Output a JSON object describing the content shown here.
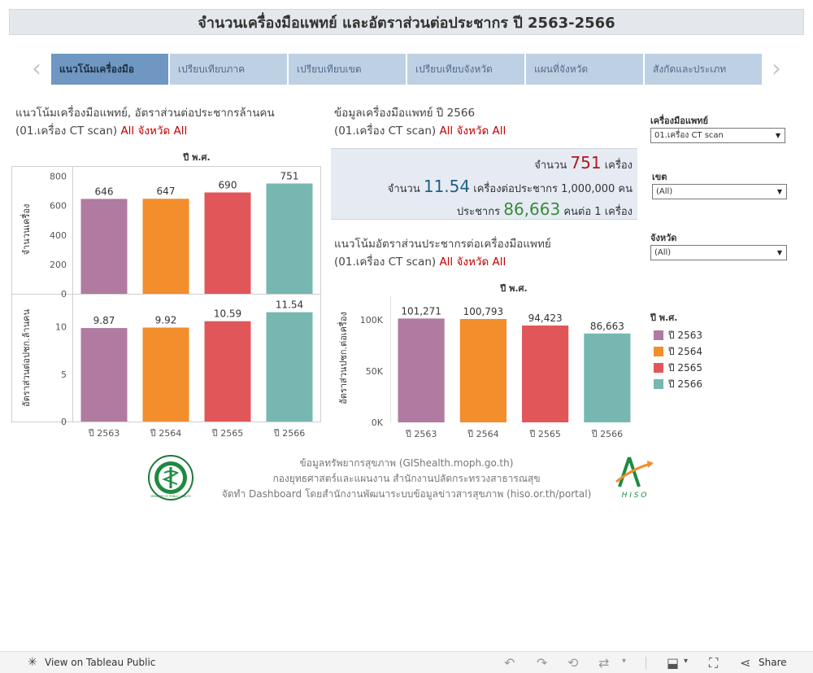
{
  "header": {
    "title": "จำนวนเครื่องมือแพทย์ และอัตราส่วนต่อประชากร ปี 2563-2566"
  },
  "nav": {
    "prev_icon": "chevron-left-icon",
    "next_icon": "chevron-right-icon",
    "tabs": [
      {
        "label": "แนวโน้มเครื่องมือ",
        "active": true
      },
      {
        "label": "เปรียบเทียบภาค",
        "active": false
      },
      {
        "label": "เปรียบเทียบเขต",
        "active": false
      },
      {
        "label": "เปรียบเทียบจังหวัด",
        "active": false
      },
      {
        "label": "แผนที่จังหวัด",
        "active": false
      },
      {
        "label": "สังกัดและประเภท",
        "active": false
      }
    ]
  },
  "left_panel": {
    "title_line1": "แนวโน้มเครื่องมือแพทย์, อัตราส่วนต่อประชากรล้านคน",
    "title_line2": "(01.เครื่อง CT scan)",
    "title_filter": "All จังหวัด All"
  },
  "right_panel": {
    "info_title_line1": "ข้อมูลเครื่องมือแพทย์ ปี 2566",
    "info_title_line2": "(01.เครื่อง CT scan)",
    "info_title_filter": "All จังหวัด All",
    "summary": {
      "count_prefix": "จำนวน",
      "count_value": "751",
      "count_suffix": "เครื่อง",
      "ratio_prefix": "จำนวน",
      "ratio_value": "11.54",
      "ratio_suffix": "เครื่องต่อประชากร 1,000,000 คน",
      "pop_prefix": "ประชากร",
      "pop_value": "86,663",
      "pop_suffix": "คนต่อ 1 เครื่อง",
      "colors": {
        "count": "#b0171f",
        "ratio": "#1f5f8b",
        "pop": "#3b8a3b"
      }
    },
    "trend_title_line1": "แนวโน้มอัตราส่วนประชากรต่อเครื่องมือแพทย์",
    "trend_title_line2": "(01.เครื่อง CT scan)",
    "trend_title_filter": "All จังหวัด All"
  },
  "filters": {
    "device": {
      "label": "เครื่องมือแพทย์",
      "value": "01.เครื่อง CT scan"
    },
    "region": {
      "label": "เขต",
      "value": "(All)"
    },
    "province": {
      "label": "จังหวัด",
      "value": "(All)"
    }
  },
  "legend": {
    "title": "ปี พ.ศ.",
    "items": [
      {
        "label": "ปี 2563",
        "color": "#b07aa1"
      },
      {
        "label": "ปี 2564",
        "color": "#f28e2b"
      },
      {
        "label": "ปี 2565",
        "color": "#e15759"
      },
      {
        "label": "ปี 2566",
        "color": "#76b7b2"
      }
    ]
  },
  "chart_data": [
    {
      "type": "bar",
      "title": "ปี พ.ศ.",
      "categories": [
        "ปี 2563",
        "ปี 2564",
        "ปี 2565",
        "ปี 2566"
      ],
      "values": [
        646,
        647,
        690,
        751
      ],
      "labels": [
        "646",
        "647",
        "690",
        "751"
      ],
      "ylabel": "จำนวนเครื่อง",
      "ylim": [
        0,
        870
      ],
      "yticks": [
        0,
        200,
        400,
        600,
        800
      ],
      "colors": [
        "#b07aa1",
        "#f28e2b",
        "#e15759",
        "#76b7b2"
      ]
    },
    {
      "type": "bar",
      "categories": [
        "ปี 2563",
        "ปี 2564",
        "ปี 2565",
        "ปี 2566"
      ],
      "values": [
        9.87,
        9.92,
        10.59,
        11.54
      ],
      "labels": [
        "9.87",
        "9.92",
        "10.59",
        "11.54"
      ],
      "ylabel": "อัตราส่วนต่อปชก.ล้านคน",
      "ylim": [
        0,
        13.4
      ],
      "yticks": [
        0,
        5,
        10
      ],
      "colors": [
        "#b07aa1",
        "#f28e2b",
        "#e15759",
        "#76b7b2"
      ]
    },
    {
      "type": "bar",
      "title": "ปี พ.ศ.",
      "categories": [
        "ปี 2563",
        "ปี 2564",
        "ปี 2565",
        "ปี 2566"
      ],
      "values": [
        101271,
        100793,
        94423,
        86663
      ],
      "labels": [
        "101,271",
        "100,793",
        "94,423",
        "86,663"
      ],
      "ylabel": "อัตราส่วนปชก.ต่อเครื่อง",
      "ylim": [
        0,
        123000
      ],
      "yticks": [
        0,
        50000,
        100000
      ],
      "ytick_labels": [
        "0K",
        "50K",
        "100K"
      ],
      "colors": [
        "#b07aa1",
        "#f28e2b",
        "#e15759",
        "#76b7b2"
      ]
    }
  ],
  "footer": {
    "line1": "ข้อมูลทรัพยากรสุขภาพ (GIShealth.moph.go.th)",
    "line2": "กองยุทธศาสตร์และแผนงาน สำนักงานปลัดกระทรวงสาธารณสุข",
    "line3": "จัดทำ Dashboard โดยสำนักงานพัฒนาระบบข้อมูลข่าวสารสุขภาพ (hiso.or.th/portal)",
    "moph_logo_text": "MINISTRY OF PUBLIC HEALTH",
    "hiso_logo_text": "H I S O"
  },
  "toolbar": {
    "view_label": "View on Tableau Public",
    "share_label": "Share"
  }
}
